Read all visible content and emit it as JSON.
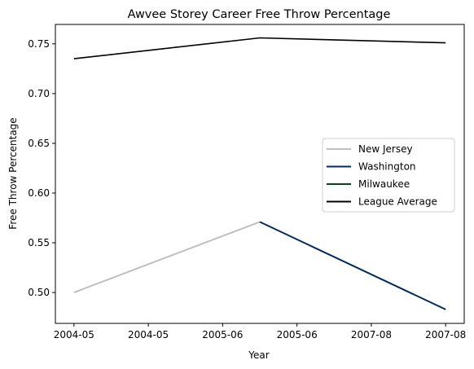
{
  "chart_data": {
    "type": "line",
    "title": "Awvee Storey Career Free Throw Percentage",
    "xlabel": "Year",
    "ylabel": "Free Throw Percentage",
    "x_tick_labels": [
      "2004-05",
      "2004-05",
      "2005-06",
      "2005-06",
      "2007-08",
      "2007-08"
    ],
    "y_ticks": [
      0.5,
      0.55,
      0.6,
      0.65,
      0.7,
      0.75
    ],
    "y_tick_labels": [
      "0.50",
      "0.55",
      "0.60",
      "0.65",
      "0.70",
      "0.75"
    ],
    "xlim": [
      -0.1,
      2.1
    ],
    "ylim": [
      0.469,
      0.7695
    ],
    "grid": false,
    "legend_position": "center-right",
    "series": [
      {
        "name": "New Jersey",
        "color": "#bfbfbf",
        "x": [
          0,
          1
        ],
        "y": [
          0.5,
          0.571
        ]
      },
      {
        "name": "Washington",
        "color": "#002b5c",
        "x": [
          1,
          2
        ],
        "y": [
          0.571,
          0.483
        ]
      },
      {
        "name": "Milwaukee",
        "color": "#00471b",
        "x": [],
        "y": []
      },
      {
        "name": "League Average",
        "color": "#000000",
        "x": [
          0,
          1,
          2
        ],
        "y": [
          0.735,
          0.756,
          0.751
        ]
      }
    ]
  }
}
